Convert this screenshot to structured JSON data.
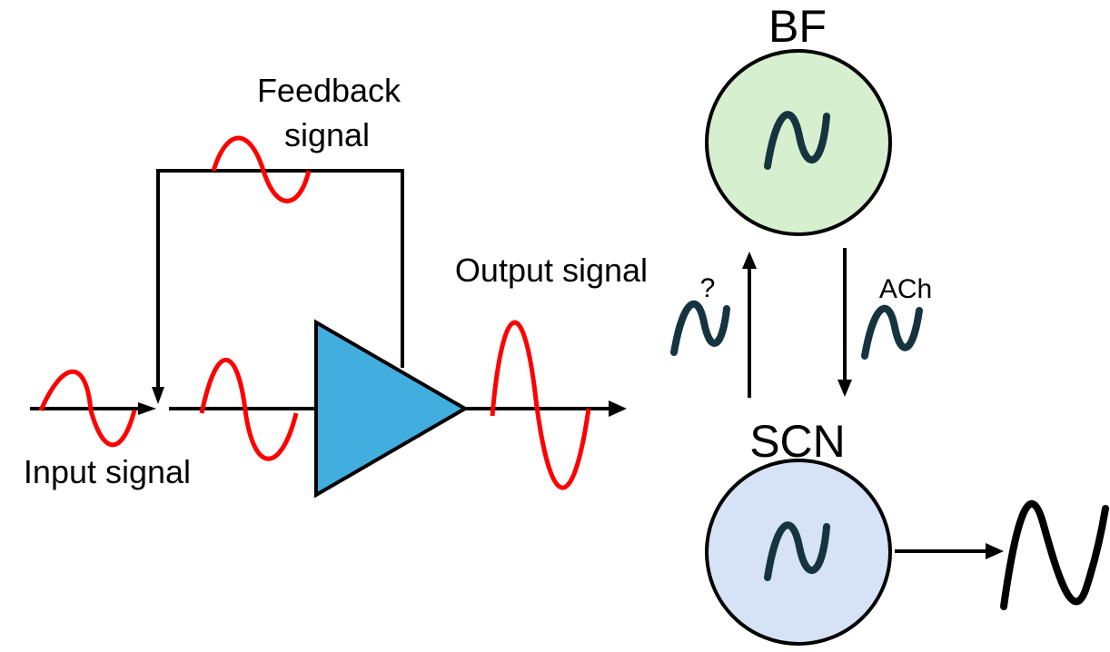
{
  "left_diagram": {
    "feedback_label_line1": "Feedback",
    "feedback_label_line2": "signal",
    "output_label": "Output signal",
    "input_label": "Input signal"
  },
  "right_diagram": {
    "bf_label": "BF",
    "scn_label": "SCN",
    "up_arrow_label": "?",
    "down_arrow_label": "ACh"
  },
  "colors": {
    "signal": "#ff0000",
    "amplifier_fill": "#42aee0",
    "bf_fill": "#d6f0cf",
    "scn_fill": "#d6e3f7",
    "oscillation_glyph": "#16343f",
    "line": "#000000"
  }
}
